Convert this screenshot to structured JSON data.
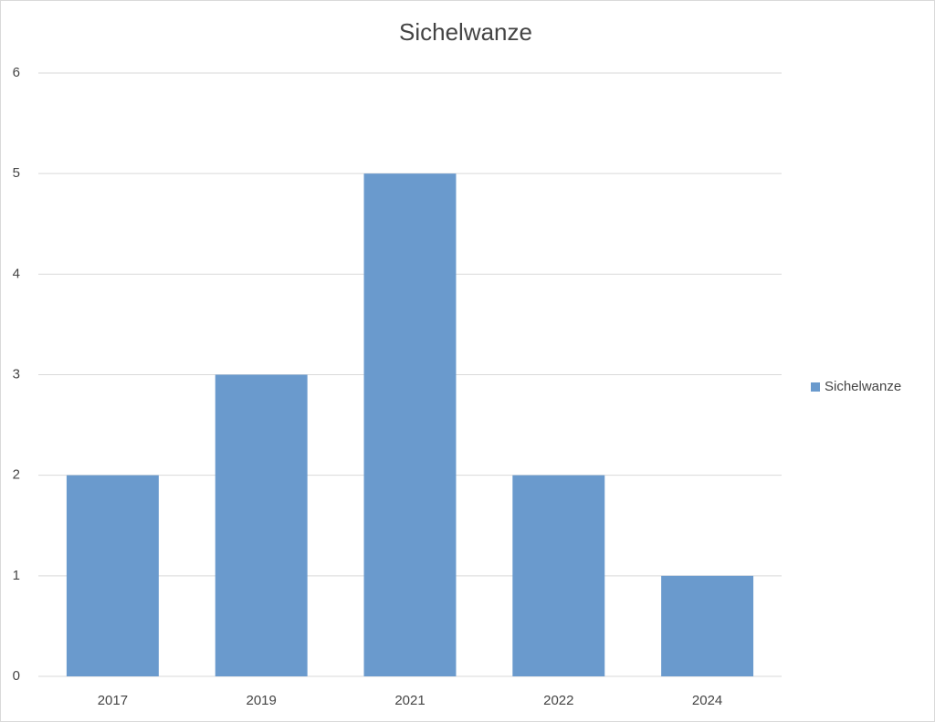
{
  "chart_data": {
    "type": "bar",
    "title": "Sichelwanze",
    "categories": [
      "2017",
      "2019",
      "2021",
      "2022",
      "2024"
    ],
    "series": [
      {
        "name": "Sichelwanze",
        "color": "#6a9acd",
        "values": [
          2,
          3,
          5,
          2,
          1
        ]
      }
    ],
    "ylim": [
      0,
      6
    ],
    "yticks": [
      0,
      1,
      2,
      3,
      4,
      5,
      6
    ],
    "grid": true,
    "legend": "right"
  }
}
